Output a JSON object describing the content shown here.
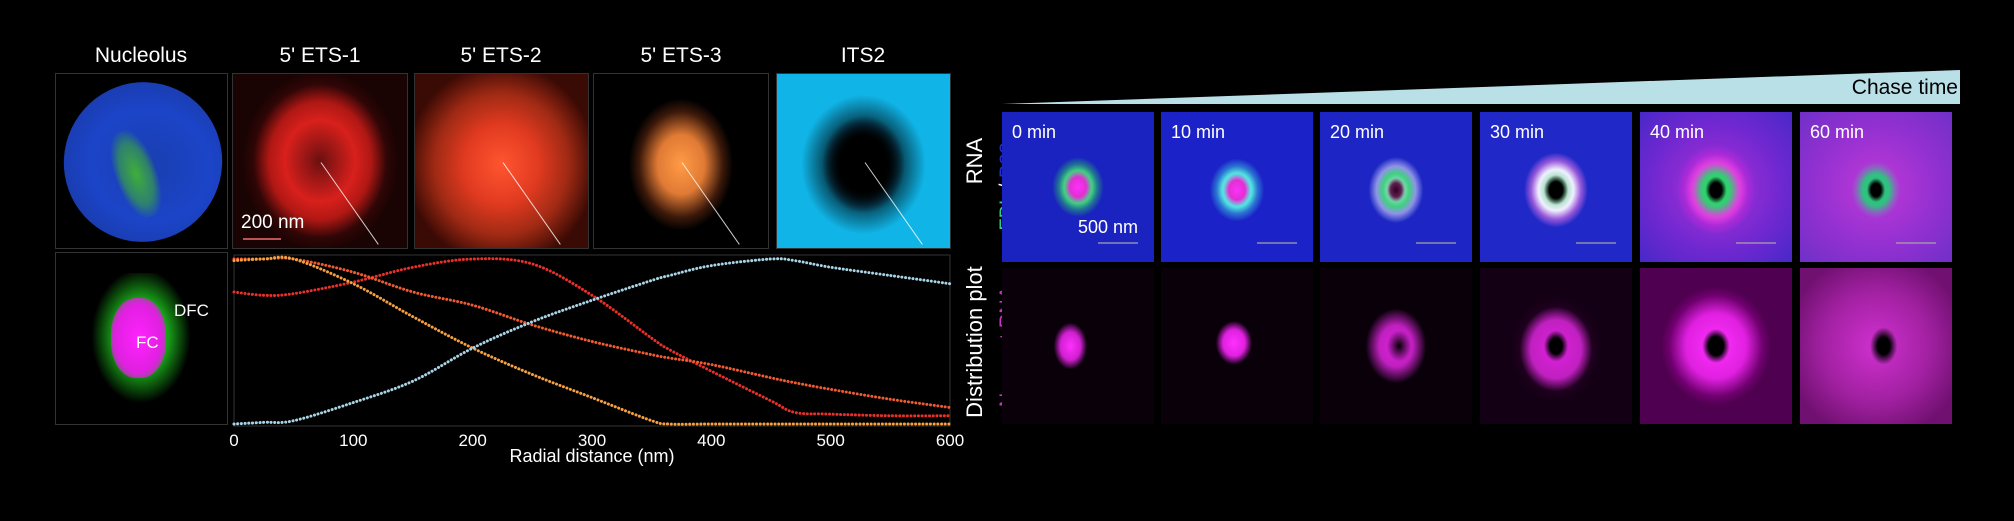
{
  "left": {
    "columns": [
      "Nucleolus",
      "5' ETS-1",
      "5' ETS-2",
      "5' ETS-3",
      "ITS2"
    ],
    "scale_bar": "200 nm",
    "row_label_rna": "RNA",
    "row_label_plot": "Distribution plot",
    "fc_label": "FC",
    "dfc_label": "DFC"
  },
  "chart_data": {
    "type": "line",
    "xlabel": "Radial distance (nm)",
    "ylabel": "",
    "xlim": [
      0,
      600
    ],
    "ylim": [
      0,
      1
    ],
    "xticks": [
      0,
      100,
      200,
      300,
      400,
      500,
      600
    ],
    "grid": false,
    "line_style": "dotted",
    "x": [
      0,
      25,
      50,
      100,
      150,
      200,
      250,
      300,
      350,
      365,
      400,
      450,
      470,
      500,
      550,
      600
    ],
    "series": [
      {
        "name": "5' ETS-1",
        "color": "#e8302a",
        "values": [
          0.8,
          0.78,
          0.79,
          0.86,
          0.95,
          1.0,
          0.97,
          0.78,
          0.52,
          0.45,
          0.32,
          0.14,
          0.07,
          0.06,
          0.05,
          0.05
        ]
      },
      {
        "name": "5' ETS-2",
        "color": "#f05a32",
        "values": [
          1.0,
          1.0,
          1.0,
          0.92,
          0.8,
          0.72,
          0.6,
          0.5,
          0.42,
          0.4,
          0.36,
          0.28,
          0.25,
          0.21,
          0.15,
          0.1
        ]
      },
      {
        "name": "5' ETS-3",
        "color": "#f7a040",
        "values": [
          0.99,
          1.0,
          1.0,
          0.85,
          0.65,
          0.46,
          0.3,
          0.16,
          0.02,
          0.0,
          0.0,
          0.0,
          0.0,
          0.0,
          0.0,
          0.0
        ]
      },
      {
        "name": "ITS2",
        "color": "#a8d4e6",
        "values": [
          0.0,
          0.01,
          0.02,
          0.13,
          0.26,
          0.46,
          0.62,
          0.75,
          0.87,
          0.9,
          0.96,
          1.0,
          0.99,
          0.95,
          0.9,
          0.85
        ]
      }
    ]
  },
  "right": {
    "header": "Chase time",
    "header_color": "#b9e0e6",
    "times": [
      "0 min",
      "10 min",
      "20 min",
      "30 min",
      "40 min",
      "60 min"
    ],
    "scale_bar": "500 nm",
    "row1_label_a": "FBL",
    "row1_label_sep": " / ",
    "row1_label_b": "B23",
    "row2_label": "Nascent RNA",
    "colors": {
      "fbl": "#2fd17a",
      "b23": "#2230c8",
      "nascent": "#d030d0"
    }
  }
}
